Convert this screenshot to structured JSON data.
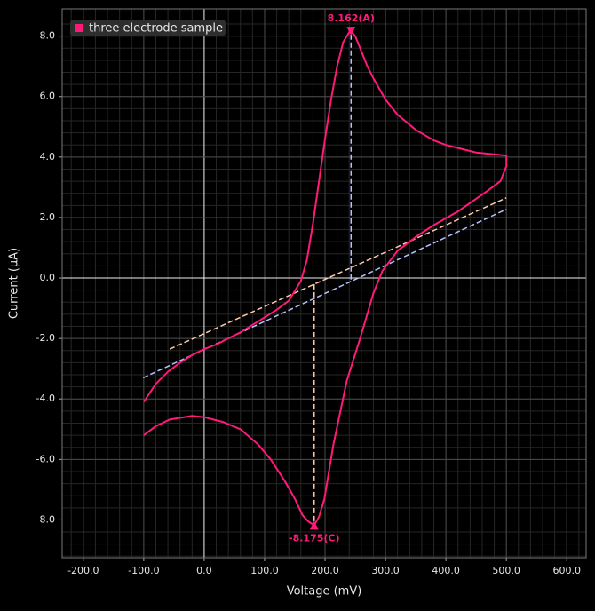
{
  "chart_data": {
    "type": "line",
    "xlabel": "Voltage (mV)",
    "ylabel": "Current (μA)",
    "xlim": [
      -235,
      632
    ],
    "ylim": [
      -9.25,
      8.9
    ],
    "xticks": [
      {
        "value": -200,
        "label": "-200.0"
      },
      {
        "value": -100,
        "label": "-100.0"
      },
      {
        "value": 0,
        "label": "0.0"
      },
      {
        "value": 100,
        "label": "100.0"
      },
      {
        "value": 200,
        "label": "200.0"
      },
      {
        "value": 300,
        "label": "300.0"
      },
      {
        "value": 400,
        "label": "400.0"
      },
      {
        "value": 500,
        "label": "500.0"
      },
      {
        "value": 600,
        "label": "600.0"
      }
    ],
    "yticks": [
      {
        "value": -8,
        "label": "-8.0"
      },
      {
        "value": -6,
        "label": "-6.0"
      },
      {
        "value": -4,
        "label": "-4.0"
      },
      {
        "value": -2,
        "label": "-2.0"
      },
      {
        "value": 0,
        "label": "0.0"
      },
      {
        "value": 2,
        "label": "2.0"
      },
      {
        "value": 4,
        "label": "4.0"
      },
      {
        "value": 6,
        "label": "6.0"
      },
      {
        "value": 8,
        "label": "8.0"
      }
    ],
    "grid": true,
    "minor_grid_divisions": 5,
    "legend": "upper left",
    "series": [
      {
        "name": "three electrode sample",
        "color": "#ff1a7a",
        "x": [
          -100,
          -80,
          -60,
          -40,
          -20,
          0,
          20,
          40,
          60,
          80,
          100,
          120,
          140,
          160,
          170,
          180,
          190,
          200,
          210,
          220,
          230,
          240,
          243,
          250,
          260,
          270,
          280,
          300,
          320,
          350,
          380,
          400,
          450,
          500,
          500,
          490,
          470,
          456,
          420,
          380,
          353,
          320,
          295,
          280,
          258,
          236,
          214,
          199,
          190,
          182,
          172,
          163,
          150,
          133,
          110,
          89,
          60,
          31,
          0,
          -20,
          -57,
          -80,
          -100
        ],
        "values": [
          -4.1,
          -3.5,
          -3.1,
          -2.8,
          -2.55,
          -2.35,
          -2.2,
          -2.0,
          -1.8,
          -1.55,
          -1.3,
          -1.05,
          -0.75,
          -0.1,
          0.6,
          1.8,
          3.2,
          4.6,
          5.9,
          7.0,
          7.8,
          8.13,
          8.162,
          8.0,
          7.5,
          7.0,
          6.6,
          5.9,
          5.4,
          4.9,
          4.55,
          4.4,
          4.15,
          4.05,
          3.7,
          3.2,
          2.9,
          2.7,
          2.2,
          1.75,
          1.4,
          0.9,
          0.24,
          -0.5,
          -2.0,
          -3.4,
          -5.5,
          -7.3,
          -7.9,
          -8.175,
          -8.05,
          -7.85,
          -7.3,
          -6.7,
          -6.0,
          -5.5,
          -5.0,
          -4.76,
          -4.6,
          -4.56,
          -4.68,
          -4.9,
          -5.2
        ]
      }
    ],
    "baselines": [
      {
        "color": "#b8c0ff",
        "x": [
          -101,
          500
        ],
        "values": [
          -3.3,
          2.27
        ]
      },
      {
        "color": "#ffc8a8",
        "x": [
          -57,
          500
        ],
        "values": [
          -2.35,
          2.65
        ]
      }
    ],
    "peaks": {
      "x": [
        243,
        182
      ],
      "values": [
        8.162,
        -8.175
      ],
      "value_labels": [
        "8.162(A)",
        "-8.175(C)"
      ],
      "baseline_values": [
        -0.05,
        -0.2
      ],
      "colors": [
        "#b8c0ff",
        "#ffc8a8"
      ]
    }
  }
}
